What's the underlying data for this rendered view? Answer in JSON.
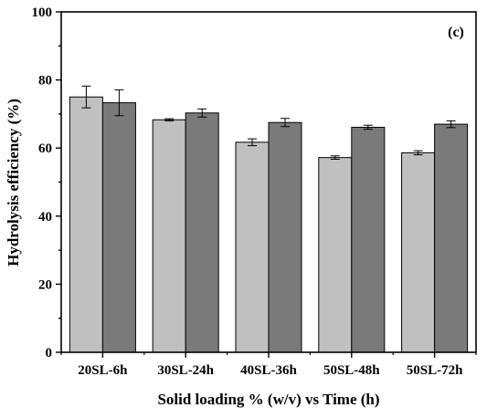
{
  "chart_data": {
    "type": "bar",
    "panel_label": "(c)",
    "xlabel": "Solid loading % (w/v) vs Time (h)",
    "ylabel": "Hydrolysis efficiency (%)",
    "ylim": [
      0,
      100
    ],
    "yticks": [
      "0",
      "20",
      "40",
      "60",
      "80",
      "100"
    ],
    "categories": [
      "20SL-6h",
      "30SL-24h",
      "40SL-36h",
      "50SL-48h",
      "50SL-72h"
    ],
    "grid": false,
    "series": [
      {
        "color": "#c0c0c0",
        "values": [
          75.0,
          68.3,
          61.7,
          57.2,
          58.6
        ],
        "errors": [
          3.2,
          0.3,
          1.0,
          0.5,
          0.6
        ]
      },
      {
        "color": "#7a7a7a",
        "values": [
          73.3,
          70.3,
          67.5,
          66.1,
          67.0
        ],
        "errors": [
          3.8,
          1.2,
          1.2,
          0.6,
          1.0
        ]
      }
    ]
  }
}
